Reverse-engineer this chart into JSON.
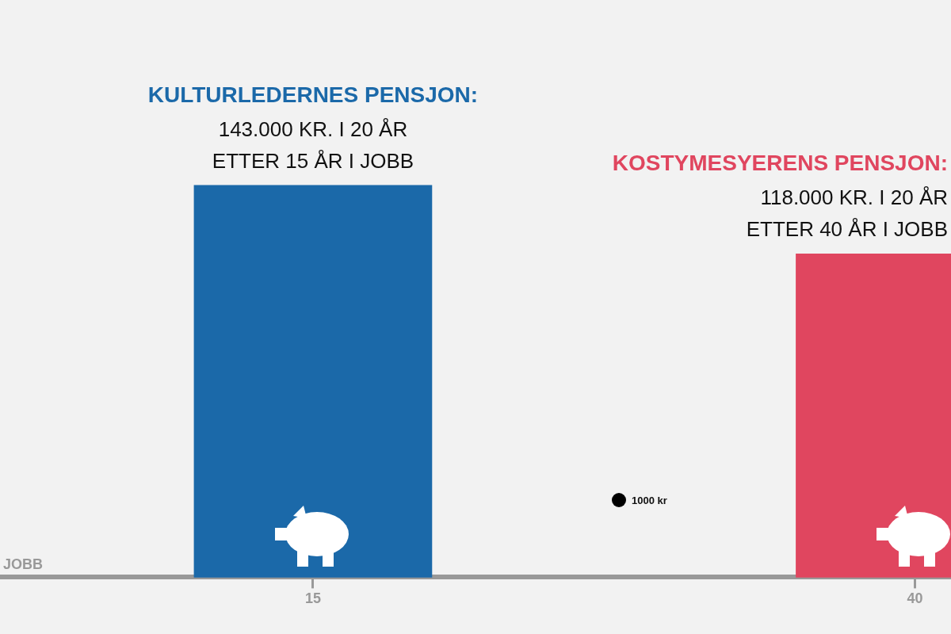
{
  "chart_data": {
    "type": "bar",
    "xlabel": "JOBB",
    "xlim": [
      2,
      41.5
    ],
    "xticks": [
      15,
      40
    ],
    "series": [
      {
        "name": "KULTURLEDERNES PENSJON:",
        "color": "#1b69a9",
        "x": [
          15
        ],
        "values": [
          143000
        ],
        "value_labels": [
          "143.000 KR. I 20 ÅR"
        ]
      },
      {
        "name": "KOSTYMESYERENS PENSJON:",
        "color": "#e0465f",
        "x": [
          40
        ],
        "values": [
          118000
        ],
        "value_labels": [
          "118.000 KR. I 20 ÅR"
        ]
      }
    ],
    "annotations": [
      "ETTER 15 ÅR I JOBB",
      "ETTER 40 ÅR I JOBB",
      "1000 kr"
    ],
    "grid": false,
    "legend": false
  }
}
